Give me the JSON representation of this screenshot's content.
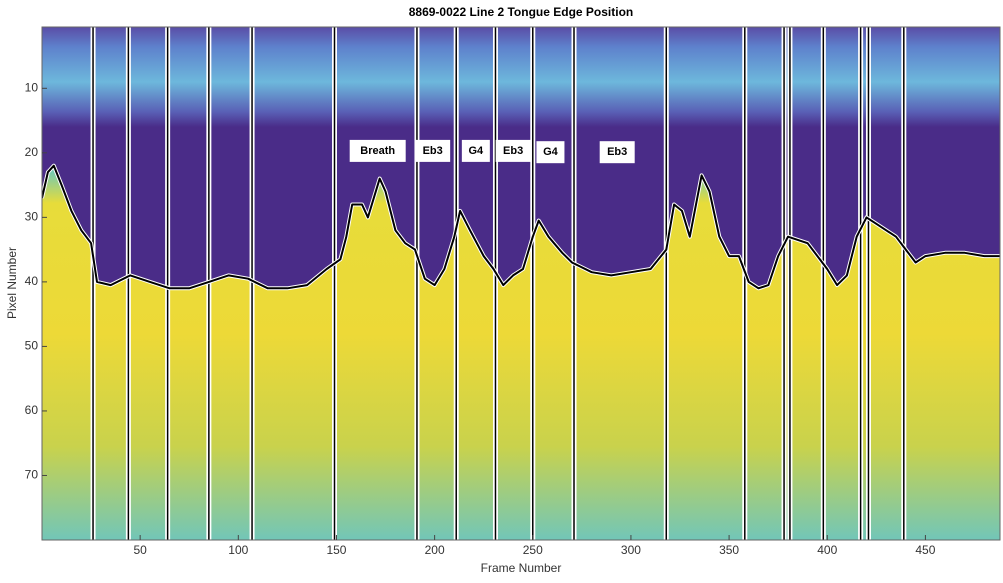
{
  "chart_data": {
    "type": "line",
    "title": "8869-0022 Line 2 Tongue Edge Position",
    "x_label": "Frame Number",
    "y_label": "Pixel Number",
    "xlim": [
      0,
      488
    ],
    "ylim": [
      80,
      0.5
    ],
    "xticks": [
      50,
      100,
      150,
      200,
      250,
      300,
      350,
      400,
      450
    ],
    "yticks": [
      10,
      20,
      30,
      40,
      50,
      60,
      70
    ],
    "series": [
      {
        "color": "#000000",
        "x": [
          0,
          3,
          6,
          10,
          15,
          20,
          25,
          28,
          35,
          45,
          55,
          65,
          75,
          85,
          95,
          105,
          115,
          125,
          135,
          145,
          152,
          155,
          158,
          163,
          166,
          172,
          175,
          180,
          185,
          190,
          195,
          200,
          205,
          210,
          213,
          218,
          225,
          230,
          235,
          240,
          245,
          250,
          253,
          258,
          265,
          270,
          280,
          290,
          300,
          310,
          318,
          322,
          326,
          330,
          336,
          340,
          345,
          350,
          355,
          360,
          365,
          370,
          375,
          380,
          390,
          400,
          405,
          410,
          415,
          420,
          425,
          435,
          440,
          445,
          450,
          460,
          470,
          480,
          488
        ],
        "values": [
          27,
          23,
          22,
          25,
          29,
          32,
          34,
          40,
          40.5,
          39,
          40,
          41,
          41,
          40,
          39,
          39.5,
          41,
          41,
          40.5,
          38,
          36.5,
          33,
          28,
          28,
          30,
          24,
          26,
          32,
          34,
          35,
          39.5,
          40.5,
          38,
          33,
          29,
          32,
          36,
          38,
          40.5,
          39,
          38,
          33,
          30.5,
          33,
          35.5,
          37,
          38.5,
          39,
          38.5,
          38,
          35,
          28,
          29,
          33,
          23.5,
          26,
          33,
          36,
          36,
          40,
          41,
          40.5,
          36,
          33,
          34,
          38,
          40.5,
          39,
          33,
          30,
          31,
          33,
          35,
          37,
          36,
          35.5,
          35.5,
          36,
          36
        ]
      }
    ],
    "segment_boundaries": [
      26,
      44,
      64,
      85,
      107,
      149,
      191,
      211,
      231,
      250,
      271,
      318,
      358,
      378,
      381,
      398,
      417,
      421,
      439
    ],
    "annotations": [
      {
        "text": "Breath",
        "x": 171,
        "y": 19.7
      },
      {
        "text": "Eb3",
        "x": 199,
        "y": 19.7
      },
      {
        "text": "G4",
        "x": 221,
        "y": 19.7
      },
      {
        "text": "Eb3",
        "x": 240,
        "y": 19.7
      },
      {
        "text": "G4",
        "x": 259,
        "y": 19.9
      },
      {
        "text": "Eb3",
        "x": 293,
        "y": 19.9
      }
    ]
  }
}
